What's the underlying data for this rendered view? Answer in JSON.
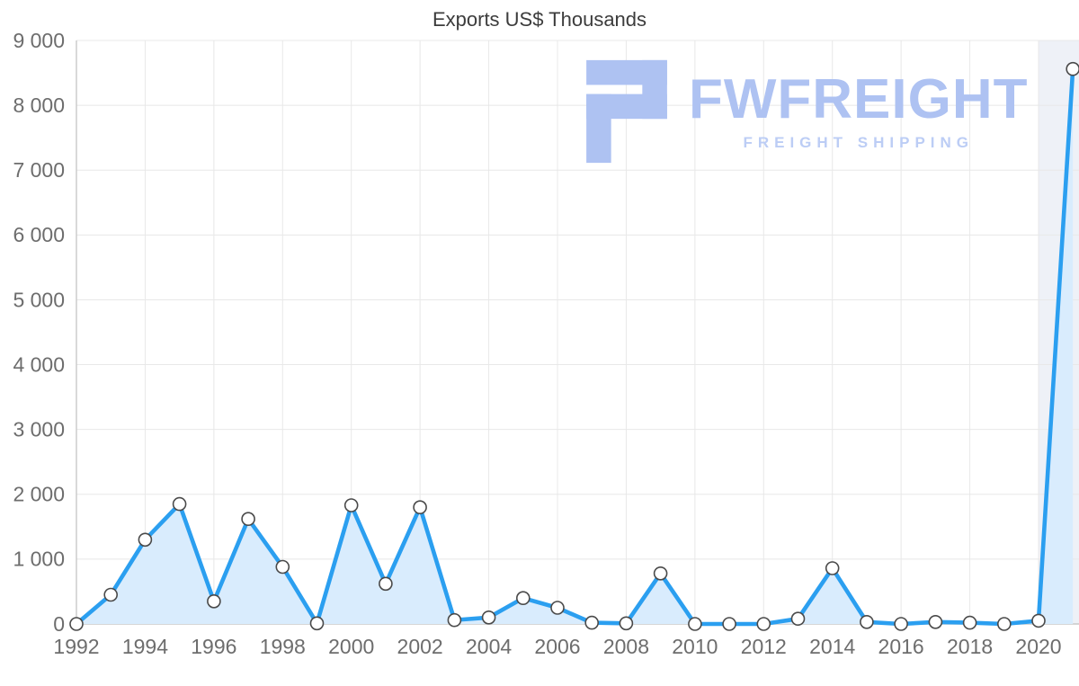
{
  "title": "Exports US$ Thousands",
  "watermark": {
    "brand": "FWFREIGHT",
    "tagline": "FREIGHT SHIPPING"
  },
  "colors": {
    "line": "#2b9ff0",
    "area": "#d9ecfd",
    "marker_fill": "#ffffff",
    "marker_stroke": "#4a4a4a",
    "grid": "#e8e8e8",
    "axis": "#c9c9c9",
    "tick_text": "#6d6d6d",
    "future_band": "#eef1f7",
    "watermark_color": "#aec2f2",
    "watermark_color2": "#bccdf5"
  },
  "chart_data": {
    "type": "line",
    "title": "Exports US$ Thousands",
    "x": [
      1992,
      1993,
      1994,
      1995,
      1996,
      1997,
      1998,
      1999,
      2000,
      2001,
      2002,
      2003,
      2004,
      2005,
      2006,
      2007,
      2008,
      2009,
      2010,
      2011,
      2012,
      2013,
      2014,
      2015,
      2016,
      2017,
      2018,
      2019,
      2020,
      2021
    ],
    "values": [
      0,
      450,
      1300,
      1850,
      350,
      1620,
      880,
      10,
      1830,
      620,
      1800,
      60,
      100,
      400,
      250,
      20,
      10,
      780,
      0,
      0,
      0,
      80,
      860,
      30,
      0,
      30,
      20,
      0,
      50,
      8560
    ],
    "xlabel": "",
    "ylabel": "",
    "ylim": [
      0,
      9000
    ],
    "ytick_step": 1000,
    "xtick_years": [
      1992,
      1994,
      1996,
      1998,
      2000,
      2002,
      2004,
      2006,
      2008,
      2010,
      2012,
      2014,
      2016,
      2018,
      2020
    ],
    "grid": true,
    "legend": false,
    "area_fill": true,
    "markers": true
  }
}
